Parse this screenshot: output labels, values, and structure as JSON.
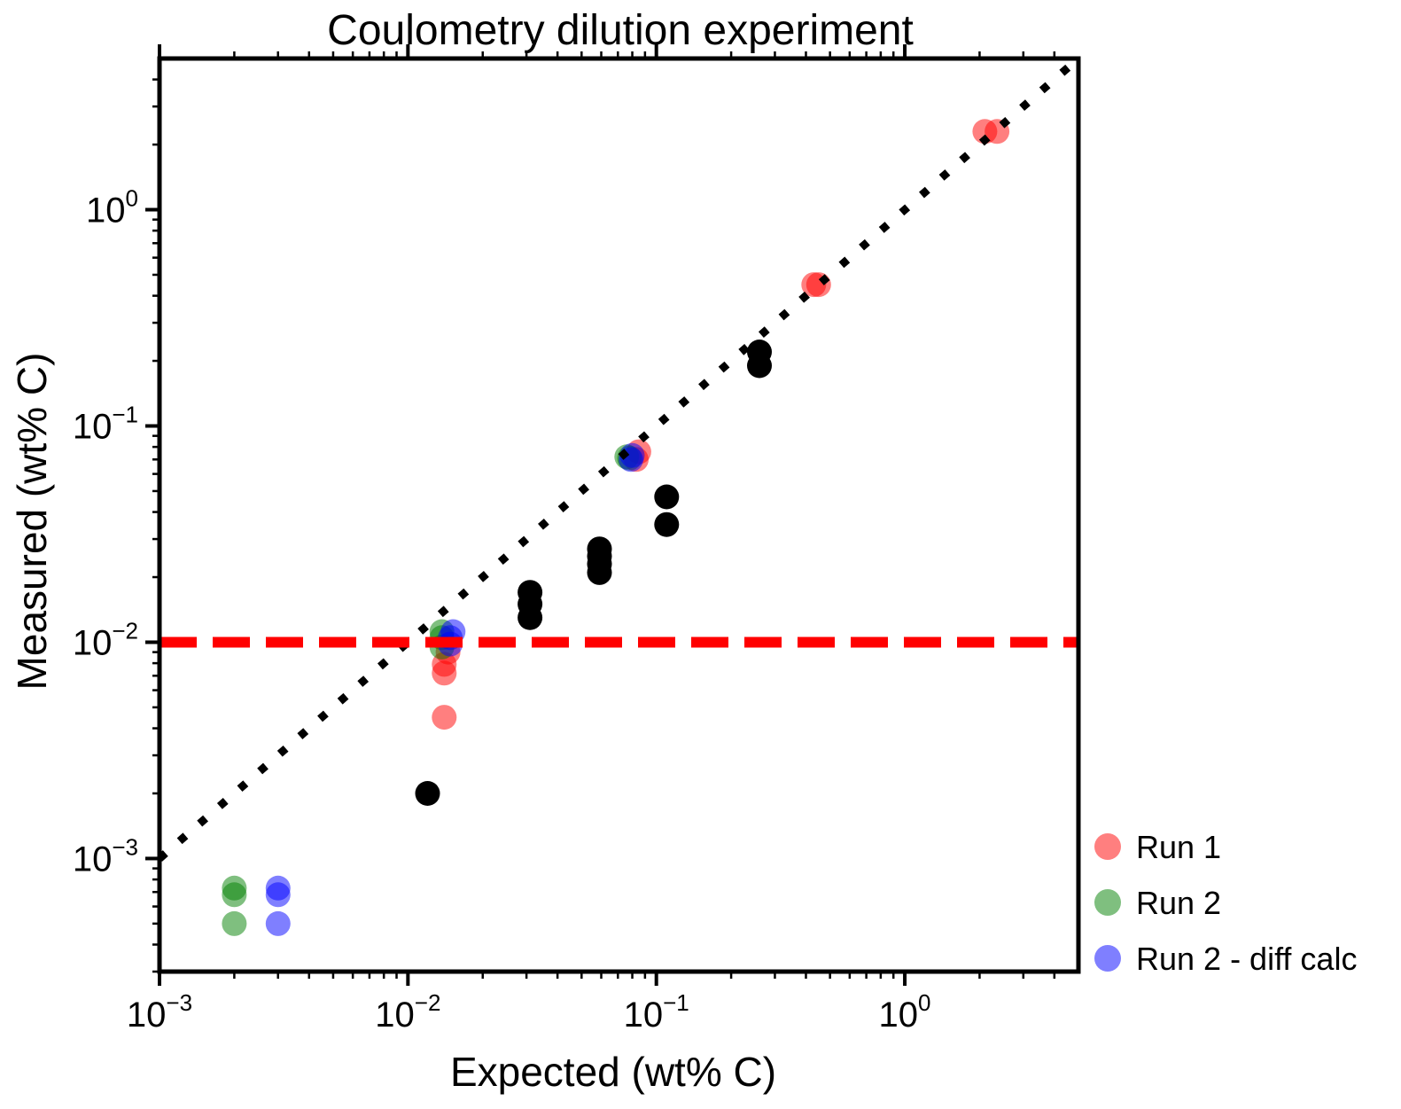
{
  "chart_data": {
    "type": "scatter",
    "title": "Coulometry dilution experiment",
    "xlabel": "Expected (wt% C)",
    "ylabel": "Measured (wt% C)",
    "xscale": "log",
    "yscale": "log",
    "xlim": [
      0.001,
      5
    ],
    "ylim": [
      0.0003,
      5
    ],
    "xticks": [
      {
        "base": "10",
        "exp": "−3",
        "value": 0.001
      },
      {
        "base": "10",
        "exp": "−2",
        "value": 0.01
      },
      {
        "base": "10",
        "exp": "−1",
        "value": 0.1
      },
      {
        "base": "10",
        "exp": "0",
        "value": 1
      }
    ],
    "yticks": [
      {
        "base": "10",
        "exp": "−3",
        "value": 0.001
      },
      {
        "base": "10",
        "exp": "−2",
        "value": 0.01
      },
      {
        "base": "10",
        "exp": "−1",
        "value": 0.1
      },
      {
        "base": "10",
        "exp": "0",
        "value": 1
      }
    ],
    "grid": false,
    "legend_position": "right, outside bottom",
    "reference_lines": [
      {
        "kind": "identity",
        "style": "dotted",
        "color": "#000000",
        "points": [
          [
            0.001,
            0.001
          ],
          [
            5,
            5
          ]
        ]
      },
      {
        "kind": "horizontal",
        "style": "dashed",
        "color": "#ff0000",
        "y": 0.01,
        "x_from": 0.001,
        "x_to": 5
      }
    ],
    "series": [
      {
        "name": "Run 1",
        "color": "#ff0000",
        "alpha": 0.5,
        "points": [
          [
            0.014,
            0.0045
          ],
          [
            0.014,
            0.0072
          ],
          [
            0.014,
            0.0079
          ],
          [
            0.0145,
            0.009
          ],
          [
            0.083,
            0.07
          ],
          [
            0.085,
            0.076
          ],
          [
            0.43,
            0.45
          ],
          [
            0.45,
            0.45
          ],
          [
            2.1,
            2.3
          ],
          [
            2.35,
            2.3
          ]
        ]
      },
      {
        "name": "Run 2",
        "color": "#008000",
        "alpha": 0.5,
        "points": [
          [
            0.002,
            0.0005
          ],
          [
            0.002,
            0.00068
          ],
          [
            0.002,
            0.00073
          ],
          [
            0.0137,
            0.0095
          ],
          [
            0.0137,
            0.0105
          ],
          [
            0.0137,
            0.0112
          ],
          [
            0.076,
            0.072
          ],
          [
            0.078,
            0.071
          ]
        ]
      },
      {
        "name": "Run 2 - diff calc",
        "color": "#0000ff",
        "alpha": 0.5,
        "points": [
          [
            0.003,
            0.0005
          ],
          [
            0.003,
            0.00068
          ],
          [
            0.003,
            0.00073
          ],
          [
            0.0148,
            0.0098
          ],
          [
            0.0148,
            0.0105
          ],
          [
            0.0152,
            0.0112
          ],
          [
            0.079,
            0.07
          ],
          [
            0.08,
            0.073
          ]
        ]
      },
      {
        "color": "#000000",
        "alpha": 1.0,
        "points": [
          [
            0.012,
            0.002
          ],
          [
            0.031,
            0.013
          ],
          [
            0.031,
            0.015
          ],
          [
            0.031,
            0.017
          ],
          [
            0.059,
            0.021
          ],
          [
            0.059,
            0.023
          ],
          [
            0.059,
            0.025
          ],
          [
            0.059,
            0.027
          ],
          [
            0.11,
            0.035
          ],
          [
            0.11,
            0.047
          ],
          [
            0.26,
            0.19
          ],
          [
            0.26,
            0.22
          ]
        ]
      }
    ]
  }
}
